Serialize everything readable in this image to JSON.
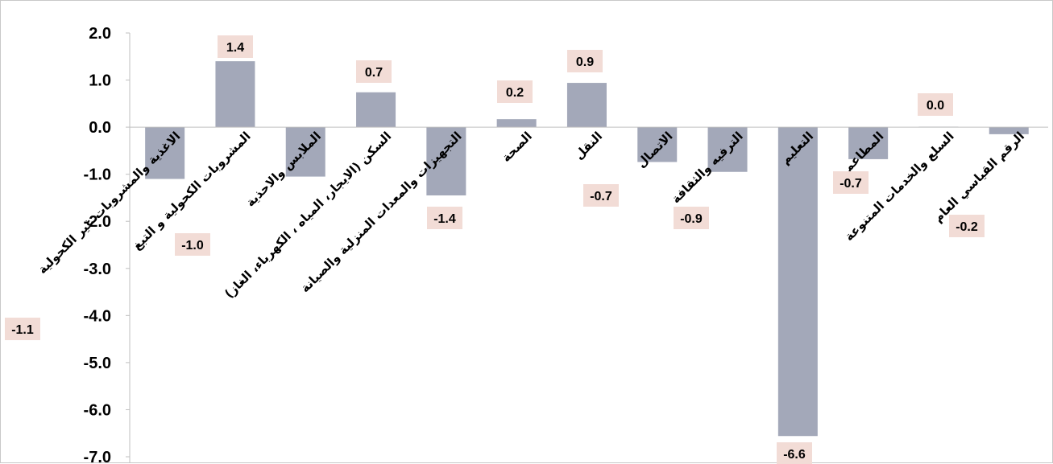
{
  "chart_data": {
    "type": "bar",
    "title": "",
    "xlabel": "",
    "ylabel": "",
    "ylim": [
      -7.0,
      2.0
    ],
    "yticks": [
      "2.0",
      "1.0",
      "0.0",
      "-1.0",
      "-2.0",
      "-3.0",
      "-4.0",
      "-5.0",
      "-6.0",
      "-7.0"
    ],
    "ytick_values": [
      2,
      1,
      0,
      -1,
      -2,
      -3,
      -4,
      -5,
      -6,
      -7
    ],
    "grid": false,
    "legend": "none",
    "bar_color": "#a3a8b9",
    "label_bg_color": "#f2dcd6",
    "categories": [
      "الاغذية والمشروبات غير الكحولية",
      "المشروبات الكحولية و التبغ",
      "الملابس والاحذية",
      "السكن (الايجار، المياه ، الكهرباء، الغاز)",
      "التجهيزات والمعدات المنزلية والصيانة",
      "الصحة",
      "النقل",
      "الاتصال",
      "الترفيه والثقافة",
      "التعليم",
      "المطاعم",
      "السلع والخدمات المتنوعة",
      "الرقم القياسي العام"
    ],
    "values": [
      -1.1,
      1.4,
      -1.05,
      0.74,
      -1.45,
      0.17,
      0.94,
      -0.74,
      -0.95,
      -6.56,
      -0.68,
      0.01,
      -0.15
    ],
    "data_labels": [
      "-1.1",
      "1.4",
      "-1.0",
      "0.7",
      "-1.4",
      "0.2",
      "0.9",
      "-0.7",
      "-0.9",
      "-6.6",
      "-0.7",
      "0.0",
      "-0.2"
    ]
  }
}
